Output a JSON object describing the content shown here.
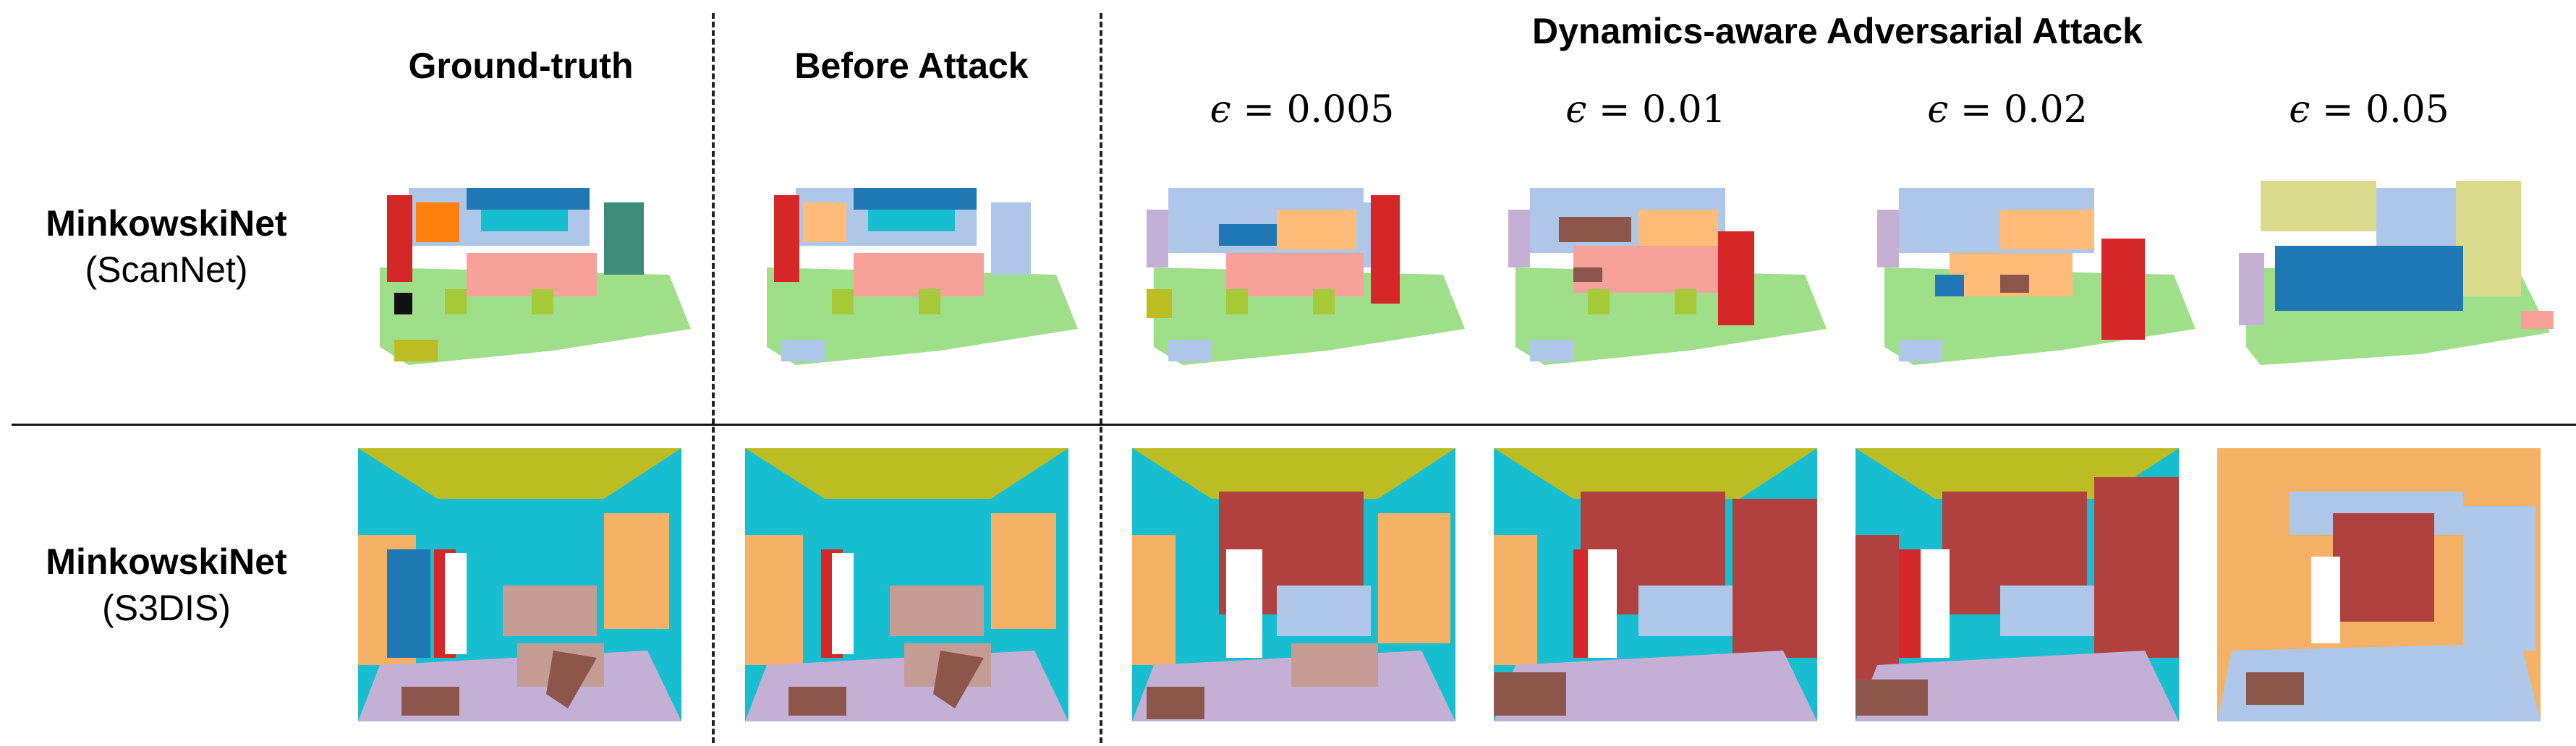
{
  "headers": {
    "ground_truth": "Ground-truth",
    "before_attack": "Before Attack",
    "attack_group": "Dynamics-aware Adversarial Attack"
  },
  "epsilons": [
    {
      "symbol": "ϵ",
      "eq": " = ",
      "value": "0.005"
    },
    {
      "symbol": "ϵ",
      "eq": " = ",
      "value": "0.01"
    },
    {
      "symbol": "ϵ",
      "eq": " = ",
      "value": "0.02"
    },
    {
      "symbol": "ϵ",
      "eq": " = ",
      "value": "0.05"
    }
  ],
  "rows": [
    {
      "model": "MinkowskiNet",
      "dataset": "(ScanNet)"
    },
    {
      "model": "MinkowskiNet",
      "dataset": "(S3DIS)"
    }
  ],
  "palette": {
    "floor": "#9fdf8a",
    "wall_blue": "#aec7e8",
    "table": "#f7a19a",
    "chair": "#a6c93a",
    "dark_blue": "#1f77b4",
    "red": "#d62728",
    "orange": "#ffbb78",
    "olive": "#bcbd22",
    "cyan": "#17becf",
    "lavender": "#c5b0d5",
    "brown": "#8c564b",
    "rose": "#c49c94",
    "sandy": "#f5b266",
    "maroon": "#b0413e",
    "purple": "#9467bd",
    "teal": "#3e8c7a"
  }
}
